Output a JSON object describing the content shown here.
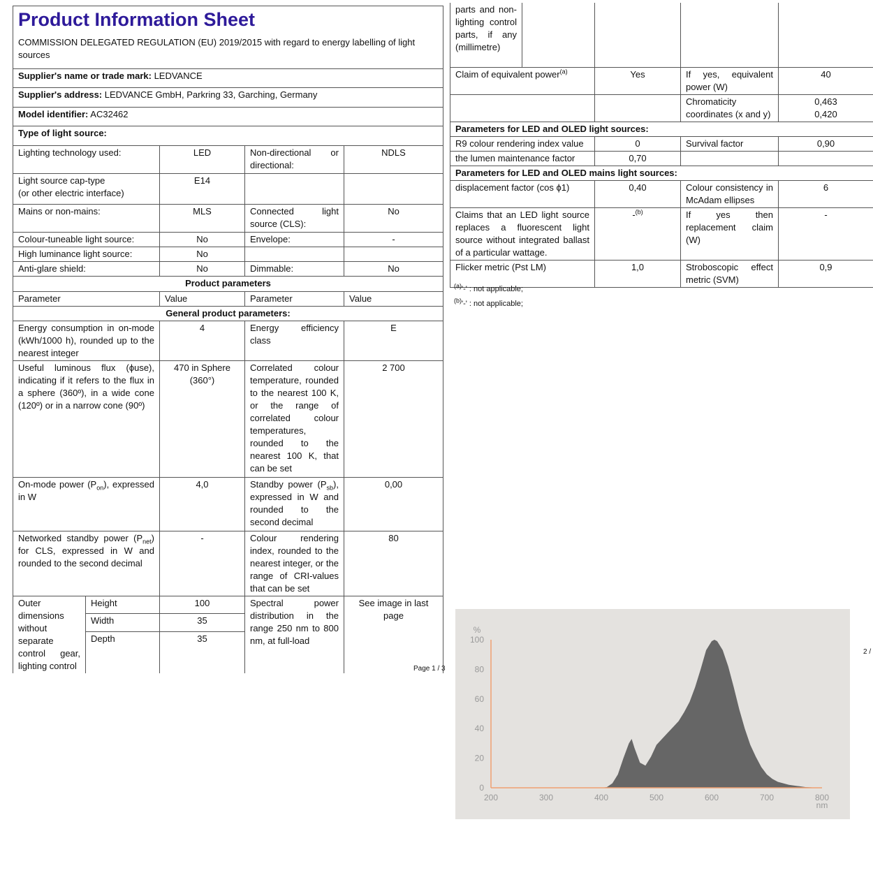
{
  "document": {
    "left": {
      "title": "Product Information Sheet",
      "regulation": "COMMISSION DELEGATED REGULATION (EU) 2019/2015 with regard to energy labelling of light sources",
      "supplier_name": {
        "label": "Supplier's name or trade mark:",
        "value": "LEDVANCE"
      },
      "supplier_address": {
        "label": "Supplier's address:",
        "value": "LEDVANCE GmbH, Parkring 33, Garching, Germany"
      },
      "model": {
        "label": "Model identifier:",
        "value": "AC32462"
      },
      "type_heading": "Type of light source:",
      "type_rows": [
        [
          "Lighting technology used:",
          "LED",
          "Non-directional or directional:",
          "NDLS"
        ],
        [
          "Light source cap-type\n(or other electric interface)",
          "E14"
        ],
        [
          "Mains or non-mains:",
          "MLS",
          "Connected light source (CLS):",
          "No"
        ],
        [
          "Colour-tuneable light source:",
          "No",
          "Envelope:",
          "-"
        ],
        [
          "High luminance light source:",
          "No"
        ],
        [
          "Anti-glare shield:",
          "No",
          "Dimmable:",
          "No"
        ]
      ],
      "product_parameters": "Product parameters",
      "header": [
        "Parameter",
        "Value",
        "Parameter",
        "Value"
      ],
      "general": "General product parameters:",
      "energy": [
        "Energy consumption in on-mode (kWh/1000 h), rounded up to the nearest integer",
        "4",
        "Energy efficiency class",
        "E"
      ],
      "flux": [
        "Useful luminous flux (ϕuse), indicating if it refers to the flux in a sphere (360º), in a wide cone (120º) or in a narrow cone (90º)",
        "470 in Sphere (360°)",
        "Correlated colour temperature, rounded to the nearest 100 K, or the range of correlated colour temperatures, rounded to the nearest 100 K, that can be set",
        "2 700"
      ],
      "on_mode": {
        "parameter": [
          "On-mode power (P",
          "on",
          "), expressed in W"
        ],
        "value": "4,0"
      },
      "standby": {
        "parameter": [
          "Standby power (P",
          "sb",
          "), expressed in W and rounded to the second decimal"
        ],
        "value": "0,00"
      },
      "networked": {
        "parameter": [
          "Networked standby power (P",
          "net",
          ") for CLS, expressed in W and rounded to the second decimal"
        ],
        "value": "-"
      },
      "cri": [
        "Colour rendering index, rounded to the nearest integer, or the range of CRI-values that can be set",
        "80"
      ],
      "outer": {
        "label": "Outer dimensions without separate control gear, lighting control",
        "dims": [
          [
            "Height",
            "100"
          ],
          [
            "Width",
            "35"
          ],
          [
            "Depth",
            "35"
          ]
        ]
      },
      "spectral": [
        "Spectral power distribution in the range 250 nm to 800 nm, at full-load",
        "See image in last page"
      ],
      "page": "Page 1 / 3"
    },
    "right": {
      "continuation": "parts and non-lighting control parts, if any (millimetre)",
      "claim": {
        "text": "Claim of equivalent power",
        "note": "(a)",
        "value": "Yes",
        "parameter": "If yes, equivalent power (W)",
        "parameter_value": "40"
      },
      "chromaticity": {
        "parameter": "Chromaticity coordinates (x and y)",
        "values": [
          "0,463",
          "0,420"
        ]
      },
      "led_heading": "Parameters for LED and OLED light sources:",
      "r9": [
        "R9 colour rendering index value",
        "0",
        "Survival factor",
        "0,90"
      ],
      "lumen": [
        "the lumen maintenance factor",
        "0,70"
      ],
      "mains_heading": "Parameters for LED and OLED mains light sources:",
      "displacement": [
        "displacement factor (cos ϕ1)",
        "0,40",
        "Colour consistency in McAdam ellipses",
        "6"
      ],
      "fluorescent": {
        "text": "Claims that an LED light source replaces a fluorescent light source without integrated ballast of a particular wattage.",
        "value": "-",
        "note": "(b)",
        "parameter": "If yes then replacement claim (W)",
        "parameter_value": "-"
      },
      "flicker": [
        "Flicker metric (Pst LM)",
        "1,0",
        "Stroboscopic effect metric (SVM)",
        "0,9"
      ],
      "footnotes": [
        {
          "mark": "(a)",
          "text": "'-' : not applicable;"
        },
        {
          "mark": "(b)",
          "text": "'-' : not applicable;"
        }
      ],
      "page": "2 /"
    }
  },
  "chart_data": {
    "type": "area",
    "y_label": "%",
    "x_label": "nm",
    "color": "#666666",
    "axis_color": "#f0a070",
    "x": [
      380,
      390,
      400,
      410,
      420,
      430,
      440,
      450,
      455,
      460,
      470,
      480,
      490,
      500,
      510,
      520,
      530,
      540,
      550,
      560,
      570,
      580,
      590,
      600,
      605,
      610,
      620,
      630,
      640,
      650,
      660,
      670,
      680,
      690,
      700,
      710,
      720,
      730,
      740,
      750,
      760,
      770,
      780,
      790
    ],
    "values": [
      0,
      0,
      0,
      0.5,
      3,
      9,
      20,
      30,
      33,
      27,
      17,
      15,
      21,
      29,
      33,
      37,
      41,
      45,
      51,
      58,
      68,
      80,
      93,
      99,
      100,
      99,
      93,
      82,
      68,
      53,
      40,
      29,
      21,
      14,
      9,
      6,
      4,
      3,
      2,
      1.5,
      1,
      0.5,
      0.3,
      0
    ],
    "xlim": [
      200,
      800
    ],
    "ylim": [
      0,
      100
    ],
    "xticks": [
      200,
      300,
      400,
      500,
      600,
      700,
      800
    ],
    "yticks": [
      0,
      20,
      40,
      60,
      80,
      100
    ]
  }
}
